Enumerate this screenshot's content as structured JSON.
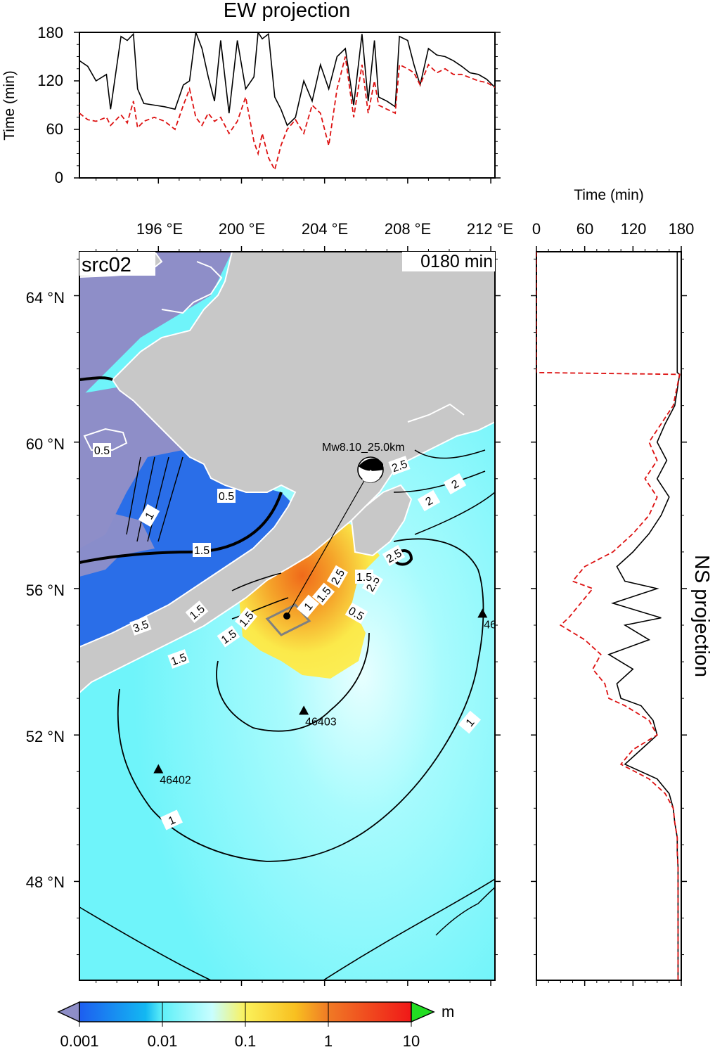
{
  "source_label": "src02",
  "time_label": "0180 min",
  "ew_panel": {
    "title": "EW projection",
    "ylabel": "Time (min)",
    "yticks": [
      "0",
      "60",
      "120",
      "180"
    ]
  },
  "ns_panel": {
    "title": "NS projection",
    "xlabel": "Time (min)",
    "xticks": [
      "0",
      "60",
      "120",
      "180"
    ]
  },
  "map": {
    "lon_ticks": [
      "196 °E",
      "200 °E",
      "204 °E",
      "208 °E",
      "212 °E"
    ],
    "lat_ticks": [
      "64 °N",
      "60 °N",
      "56 °N",
      "52 °N",
      "48 °N"
    ],
    "event_label": "Mw8.10_25.0km",
    "stations": [
      {
        "id": "46403",
        "lon": 203.0,
        "lat": 52.65
      },
      {
        "id": "46402",
        "lon": 196.0,
        "lat": 51.05
      },
      {
        "id": "46",
        "lon": 211.6,
        "lat": 55.3
      }
    ],
    "contour_labels": [
      "1",
      "1",
      "1",
      "1.5",
      "1.5",
      "1.5",
      "2",
      "2.5",
      "2.5",
      "0.5",
      "0.5",
      "1.5",
      "2",
      "2.5",
      "3.5",
      "1.5",
      "0.5",
      "1.5",
      "1",
      "1.5",
      "2.5"
    ],
    "colors": {
      "land": "#c8c8c8",
      "low_amp": "#2a6ee8",
      "shelf": "#8e8ec8",
      "ocean": "#6ff4fa",
      "source_yellow": "#fbe94a",
      "source_orange": "#f39a2a"
    }
  },
  "colorbar": {
    "ticks": [
      "0.001",
      "0.01",
      "0.1",
      "1",
      "10"
    ],
    "unit": "m",
    "scale": "log"
  },
  "chart_data": [
    {
      "type": "line",
      "title": "EW projection",
      "xlabel": "",
      "ylabel": "Time (min)",
      "ylim": [
        0,
        180
      ],
      "xlim": [
        192.2,
        212.2
      ],
      "series": [
        {
          "style": "solid",
          "color": "#000000",
          "x": [
            192.2,
            192.6,
            193.0,
            193.5,
            193.7,
            194.2,
            194.5,
            194.8,
            195.0,
            195.3,
            195.8,
            196.3,
            196.8,
            197.2,
            197.5,
            197.8,
            198.1,
            198.4,
            198.7,
            199.0,
            199.4,
            199.8,
            200.2,
            200.6,
            200.8,
            201.0,
            201.3,
            201.6,
            201.9,
            202.2,
            202.6,
            203.0,
            203.4,
            203.8,
            204.2,
            204.6,
            205.0,
            205.4,
            205.8,
            206.1,
            206.4,
            206.6,
            207.0,
            207.4,
            207.6,
            208.0,
            208.3,
            208.6,
            209.0,
            209.4,
            209.8,
            210.2,
            210.6,
            211.0,
            211.4,
            211.8,
            212.2
          ],
          "y": [
            145,
            138,
            120,
            128,
            85,
            175,
            170,
            178,
            110,
            92,
            90,
            88,
            85,
            115,
            120,
            180,
            160,
            125,
            95,
            170,
            80,
            170,
            110,
            125,
            180,
            172,
            178,
            100,
            85,
            65,
            75,
            120,
            95,
            140,
            110,
            150,
            160,
            90,
            178,
            95,
            170,
            100,
            95,
            88,
            175,
            170,
            140,
            115,
            160,
            152,
            150,
            145,
            138,
            130,
            128,
            122,
            112
          ]
        },
        {
          "style": "dashed",
          "color": "#dd1111",
          "x": [
            192.2,
            192.6,
            193.0,
            193.5,
            193.7,
            194.2,
            194.5,
            194.8,
            195.0,
            195.3,
            195.8,
            196.3,
            196.8,
            197.2,
            197.5,
            197.8,
            198.1,
            198.4,
            198.7,
            199.0,
            199.4,
            199.8,
            200.2,
            200.6,
            200.8,
            201.0,
            201.3,
            201.6,
            201.9,
            202.2,
            202.6,
            203.0,
            203.4,
            203.8,
            204.2,
            204.6,
            205.0,
            205.4,
            205.8,
            206.1,
            206.4,
            206.6,
            207.0,
            207.4,
            207.6,
            208.0,
            208.3,
            208.6,
            209.0,
            209.4,
            209.8,
            210.2,
            210.6,
            211.0,
            211.4,
            211.8,
            212.2
          ],
          "y": [
            80,
            72,
            70,
            75,
            65,
            78,
            68,
            95,
            62,
            70,
            75,
            70,
            60,
            90,
            110,
            75,
            65,
            80,
            70,
            75,
            55,
            70,
            100,
            45,
            30,
            55,
            25,
            10,
            40,
            60,
            72,
            55,
            90,
            80,
            40,
            110,
            150,
            75,
            140,
            80,
            120,
            90,
            85,
            80,
            140,
            135,
            130,
            115,
            140,
            130,
            135,
            128,
            128,
            124,
            120,
            118,
            112
          ]
        }
      ]
    },
    {
      "type": "line",
      "title": "NS projection",
      "xlabel": "Time (min)",
      "ylabel": "",
      "xlim": [
        0,
        180
      ],
      "ylim": [
        45.3,
        65.2
      ],
      "orientation": "vertical",
      "series": [
        {
          "style": "solid",
          "color": "#000000",
          "lat": [
            65.2,
            61.9,
            61.85,
            61.0,
            60.5,
            60.0,
            59.5,
            59.0,
            58.5,
            58.0,
            57.5,
            57.0,
            56.6,
            56.2,
            56.0,
            55.6,
            55.2,
            55.0,
            54.6,
            54.2,
            53.8,
            53.4,
            53.0,
            52.8,
            52.4,
            52.0,
            51.6,
            51.2,
            50.8,
            50.4,
            50.0,
            49.6,
            49.2,
            48.8,
            48.4,
            48.0,
            47.0,
            46.0,
            45.3
          ],
          "t": [
            175,
            175,
            178,
            172,
            160,
            150,
            162,
            150,
            165,
            155,
            140,
            120,
            100,
            110,
            150,
            95,
            155,
            110,
            140,
            90,
            120,
            100,
            105,
            130,
            145,
            150,
            130,
            110,
            150,
            165,
            170,
            172,
            175,
            175,
            176,
            176,
            176,
            176,
            176
          ]
        },
        {
          "style": "dashed",
          "color": "#dd1111",
          "lat": [
            65.2,
            61.9,
            61.85,
            61.0,
            60.5,
            60.0,
            59.5,
            59.0,
            58.5,
            58.0,
            57.5,
            57.0,
            56.6,
            56.2,
            56.0,
            55.6,
            55.2,
            55.0,
            54.6,
            54.2,
            53.8,
            53.4,
            53.0,
            52.8,
            52.4,
            52.0,
            51.6,
            51.2,
            50.8,
            50.4,
            50.0,
            49.6,
            49.2,
            48.8,
            48.4,
            48.0,
            47.0,
            46.0,
            45.3
          ],
          "t": [
            0,
            0,
            178,
            170,
            155,
            140,
            150,
            135,
            150,
            140,
            120,
            95,
            60,
            45,
            70,
            55,
            40,
            30,
            60,
            80,
            70,
            85,
            90,
            110,
            140,
            150,
            120,
            105,
            140,
            160,
            170,
            172,
            175,
            175,
            176,
            176,
            176,
            176,
            176
          ]
        }
      ]
    }
  ]
}
